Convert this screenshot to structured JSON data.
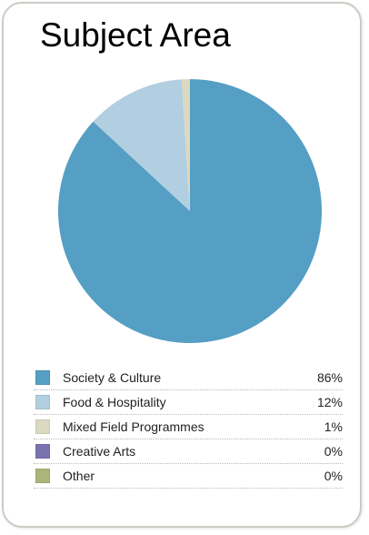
{
  "chart_data": {
    "type": "pie",
    "title": "Subject Area",
    "legend_position": "bottom",
    "slices": [
      {
        "label": "Society & Culture",
        "value": 86,
        "display": "86%",
        "color": "#559ec4"
      },
      {
        "label": "Food & Hospitality",
        "value": 12,
        "display": "12%",
        "color": "#b1cfe1"
      },
      {
        "label": "Mixed Field Programmes",
        "value": 1,
        "display": "1%",
        "color": "#dcd9c1"
      },
      {
        "label": "Creative Arts",
        "value": 0,
        "display": "0%",
        "color": "#7974b0"
      },
      {
        "label": "Other",
        "value": 0,
        "display": "0%",
        "color": "#a9b677"
      }
    ]
  }
}
